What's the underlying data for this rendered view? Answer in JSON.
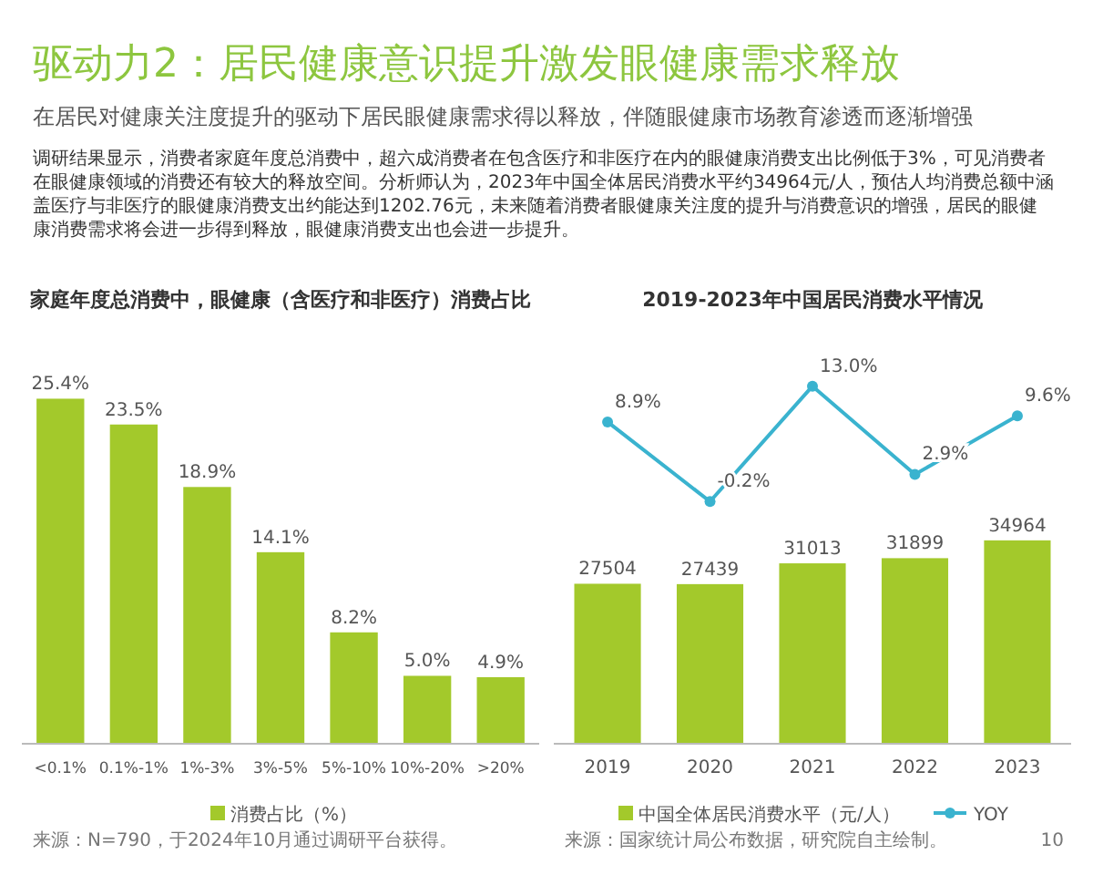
{
  "chart_data": [
    {
      "type": "other",
      "title": "驱动力2：居民健康意识提升激发眼健康需求释放",
      "subtitle": "在居民对健康关注度提升的驱动下居民眼健康需求得以释放，伴随眼健康市场教育渗透而逐渐增强",
      "annotations": [
        "调研结果显示，消费者家庭年度总消费中，超六成消费者在包含医疗和非医疗在内的眼健康消费支出比例低于3%，可见消费者在眼健康领域的消费还有较大的释放空间。分析师认为，2023年中国全体居民消费水平约34964元/人，预估人均消费总额中涵盖医疗与非医疗的眼健康消费支出约能达到1202.76元，未来随着消费者眼健康关注度的提升与消费意识的增强，居民的眼健康消费需求将会进一步得到释放，眼健康消费支出也会进一步提升。",
        "2019-2023年中国居民消费水平情况"
      ]
    },
    {
      "type": "bar",
      "title": "家庭年度总消费中，眼健康（含医疗和非医疗）消费占比",
      "categories": [
        "<0.1%",
        "0.1%-1%",
        "1%-3%",
        "3%-5%",
        "5%-10%",
        "10%-20%",
        ">20%"
      ],
      "legend": "bottom",
      "annotations": [
        "来源：N=790，于2024年10月通过调研平台获得。"
      ],
      "series": [
        {
          "name": "消费占比（%）",
          "color": "#a3c92b",
          "values": [
            25.4,
            23.5,
            18.9,
            14.1,
            8.2,
            5.0,
            4.9
          ],
          "value_labels": [
            "25.4%",
            "23.5%",
            "18.9%",
            "14.1%",
            "8.2%",
            "5.0%",
            "4.9%"
          ]
        }
      ]
    },
    {
      "type": "bar",
      "categories": [
        "2019",
        "2020",
        "2021",
        "2022",
        "2023"
      ],
      "legend": "bottom",
      "annotations": [
        "来源：国家统计局公布数据，研究院自主绘制。",
        "10"
      ],
      "series": [
        {
          "name": "中国全体居民消费水平（元/人）",
          "color": "#a3c92b",
          "values": [
            27504,
            27439,
            31013,
            31899,
            34964
          ],
          "value_labels": [
            "27504",
            "27439",
            "31013",
            "31899",
            "34964"
          ]
        }
      ]
    },
    {
      "type": "line",
      "categories": [
        "2019",
        "2020",
        "2021",
        "2022",
        "2023"
      ],
      "tick_labels": false,
      "legend": "bottom",
      "marker": "circle",
      "series": [
        {
          "name": "YOY",
          "color": "#3ab3cf",
          "values": [
            8.9,
            -0.2,
            13.0,
            2.9,
            9.6
          ],
          "value_labels": [
            "8.9%",
            "-0.2%",
            "13.0%",
            "2.9%",
            "9.6%"
          ]
        }
      ]
    }
  ]
}
